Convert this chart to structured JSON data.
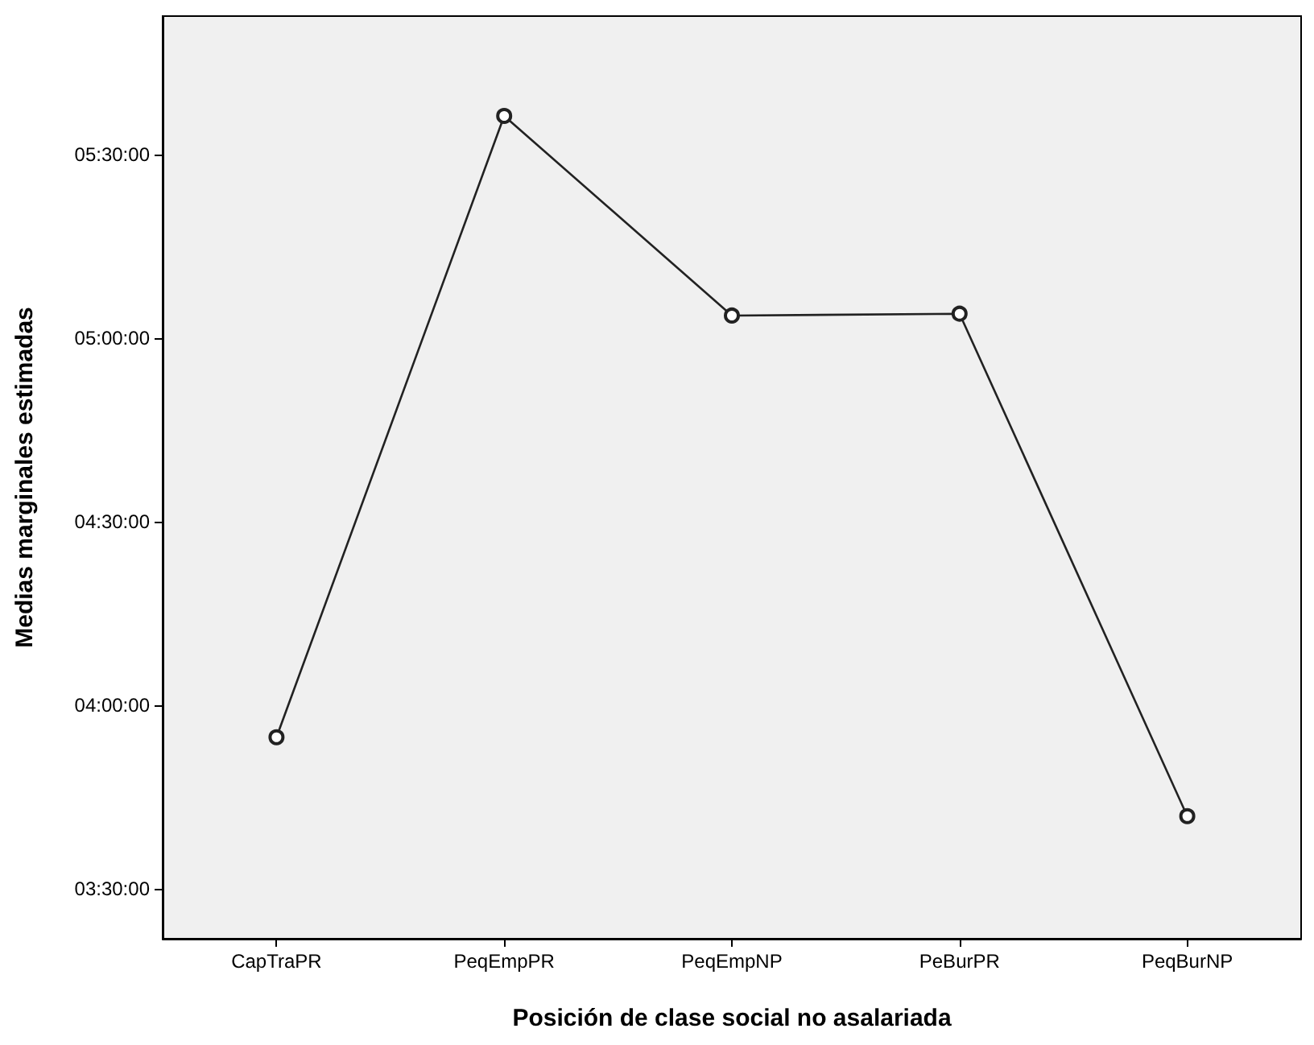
{
  "chart_data": {
    "type": "line",
    "xlabel": "Posición de clase social no asalariada",
    "ylabel": "Medias marginales estimadas",
    "categories": [
      "CapTraPR",
      "PeqEmpPR",
      "PeqEmpNP",
      "PeBurPR",
      "PeqBurNP"
    ],
    "series": [
      {
        "color": "#222222",
        "values": [
          3.912,
          5.605,
          5.061,
          5.066,
          3.697
        ]
      }
    ],
    "ylim": [
      3.363,
      5.877
    ],
    "yticks": [
      {
        "value": 3.5,
        "label": "03:30:00"
      },
      {
        "value": 4,
        "label": "04:00:00"
      },
      {
        "value": 4.5,
        "label": "04:30:00"
      },
      {
        "value": 5,
        "label": "05:00:00"
      },
      {
        "value": 5.5,
        "label": "05:30:00"
      }
    ],
    "grid": false,
    "marker": "circle",
    "line_style": "solid"
  }
}
